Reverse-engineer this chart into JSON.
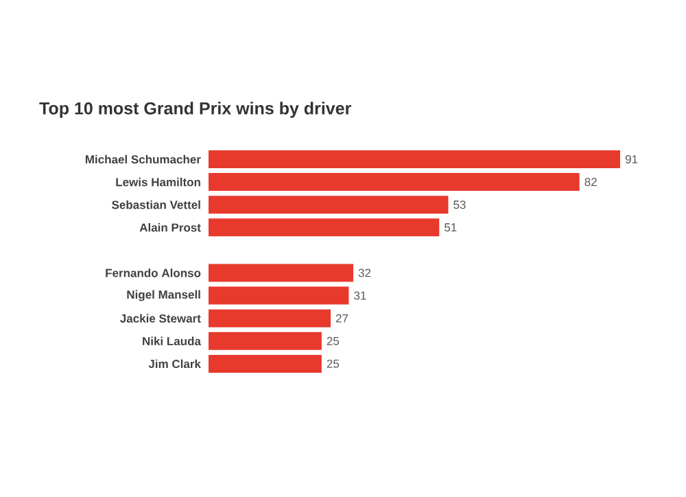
{
  "chart_data": {
    "type": "bar",
    "orientation": "horizontal",
    "title": "Top 10 most Grand Prix wins by driver",
    "categories": [
      "Michael Schumacher",
      "Lewis Hamilton",
      "Sebastian Vettel",
      "Alain Prost",
      null,
      "Fernando Alonso",
      "Nigel Mansell",
      "Jackie Stewart",
      "Niki Lauda",
      "Jim Clark"
    ],
    "values": [
      91,
      82,
      53,
      51,
      null,
      32,
      31,
      27,
      25,
      25
    ],
    "color": "#e8392d",
    "data_labels": true
  }
}
